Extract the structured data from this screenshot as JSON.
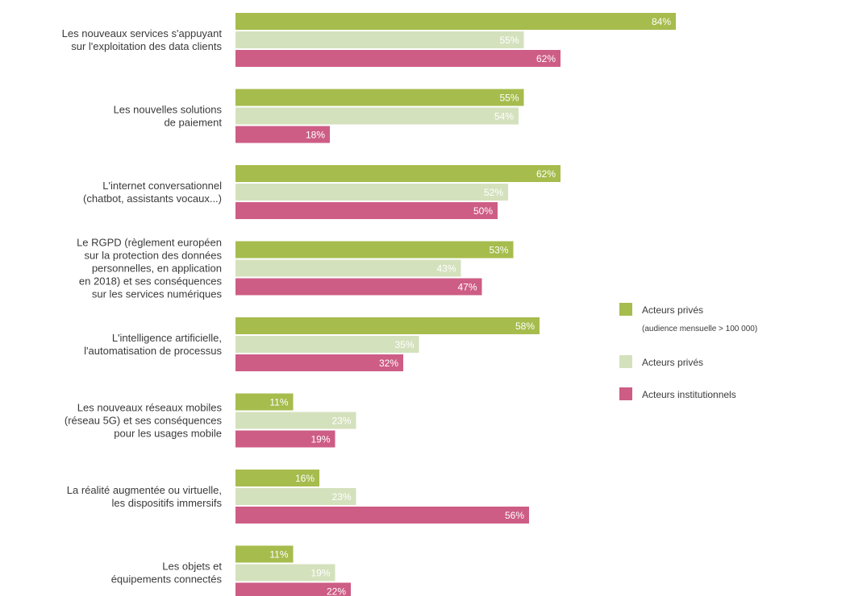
{
  "chart_data": {
    "type": "bar",
    "orientation": "horizontal",
    "categories": [
      [
        "Les nouveaux services s'appuyant",
        "sur l'exploitation des data clients"
      ],
      [
        "Les nouvelles solutions",
        "de paiement"
      ],
      [
        "L'internet conversationnel",
        "(chatbot, assistants vocaux...)"
      ],
      [
        "Le RGPD (règlement européen",
        "sur la protection des données",
        "personnelles, en application",
        "en 2018) et ses conséquences",
        "sur les services numériques"
      ],
      [
        "L'intelligence artificielle,",
        "l'automatisation de processus"
      ],
      [
        "Les nouveaux réseaux mobiles",
        "(réseau 5G) et ses conséquences",
        "pour les usages mobile"
      ],
      [
        "La réalité augmentée ou virtuelle,",
        "les dispositifs immersifs"
      ],
      [
        "Les objets et",
        "équipements connectés"
      ]
    ],
    "series": [
      {
        "name": "Acteurs privés",
        "subtitle": "(audience mensuelle > 100 000)",
        "color": "#a6bc4d",
        "values": [
          84,
          55,
          62,
          53,
          58,
          11,
          16,
          11
        ]
      },
      {
        "name": "Acteurs privés",
        "color": "#d4e1bd",
        "values": [
          55,
          54,
          52,
          43,
          35,
          23,
          23,
          19
        ]
      },
      {
        "name": "Acteurs institutionnels",
        "color": "#cd5d84",
        "values": [
          62,
          18,
          50,
          47,
          32,
          19,
          56,
          22
        ]
      }
    ],
    "value_suffix": "%",
    "xlim": [
      0,
      100
    ],
    "legend_position": "right",
    "grid": false
  }
}
